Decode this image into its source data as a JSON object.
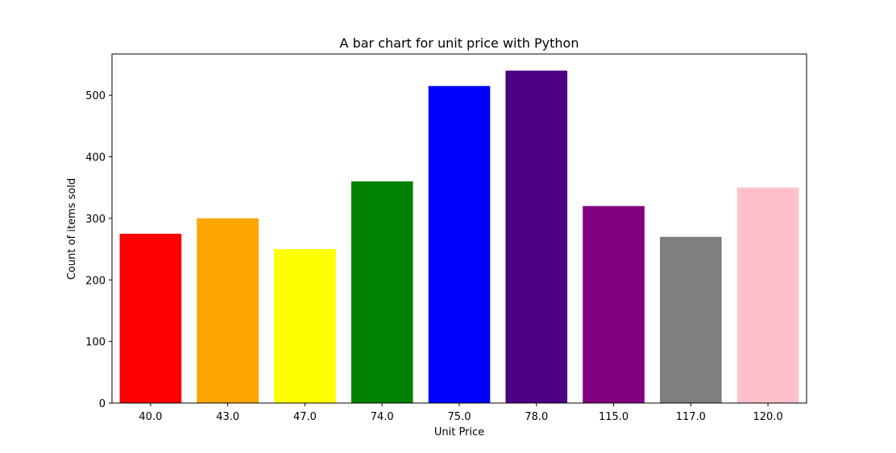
{
  "chart_data": {
    "type": "bar",
    "title": "A bar chart for unit price with Python",
    "xlabel": "Unit Price",
    "ylabel": "Count of items sold",
    "categories": [
      "40.0",
      "43.0",
      "47.0",
      "74.0",
      "75.0",
      "78.0",
      "115.0",
      "117.0",
      "120.0"
    ],
    "values": [
      275,
      300,
      250,
      360,
      515,
      540,
      320,
      270,
      350
    ],
    "colors": [
      "#ff0000",
      "#ffa500",
      "#ffff00",
      "#008000",
      "#0000ff",
      "#4b0082",
      "#800080",
      "#808080",
      "#ffc0cb"
    ],
    "ylim": [
      0,
      567
    ],
    "yticks": [
      0,
      100,
      200,
      300,
      400,
      500
    ],
    "grid": false,
    "legend": "none"
  }
}
